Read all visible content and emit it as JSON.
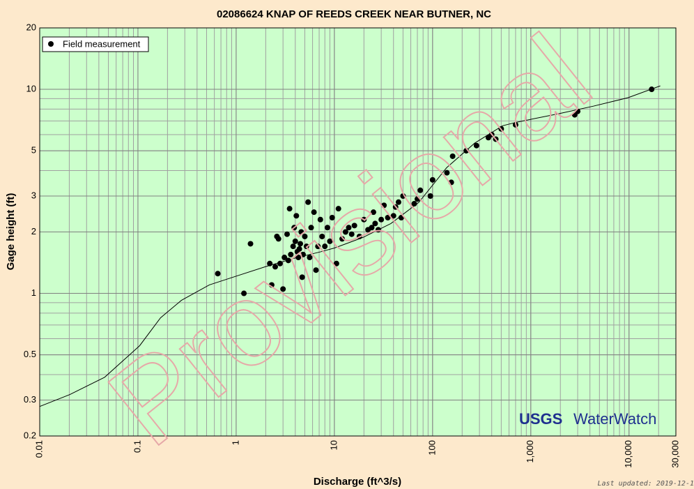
{
  "chart_data": {
    "type": "scatter",
    "title": "02086624 KNAP OF REEDS CREEK NEAR BUTNER, NC",
    "xlabel": "Discharge (ft^3/s)",
    "ylabel": "Gage height (ft)",
    "xscale": "log",
    "yscale": "log",
    "grid": true,
    "legend": "upper left",
    "xlim": [
      0.01,
      30000
    ],
    "ylim": [
      0.2,
      20
    ],
    "xticks": [
      0.01,
      0.1,
      1,
      10,
      100,
      {
        "value": 1000,
        "label": "1,000"
      },
      {
        "value": 10000,
        "label": "10,000"
      },
      {
        "value": 30000,
        "label": "30,000"
      }
    ],
    "yticks": [
      0.2,
      0.3,
      0.5,
      1,
      2,
      3,
      5,
      10,
      20
    ],
    "series": [
      {
        "name": "Field measurement",
        "color": "#000000",
        "x": [
          0.65,
          1.2,
          1.4,
          2.2,
          2.3,
          2.5,
          2.6,
          2.8,
          2.7,
          3.0,
          3.1,
          3.3,
          3.4,
          3.5,
          3.6,
          3.8,
          3.9,
          4.0,
          4.1,
          4.2,
          4.3,
          4.4,
          4.5,
          4.6,
          4.7,
          4.8,
          5.0,
          5.2,
          5.4,
          5.6,
          5.8,
          6.2,
          6.5,
          6.8,
          7.2,
          7.5,
          8.0,
          8.5,
          9.0,
          9.5,
          10.5,
          11,
          12,
          13,
          14,
          15,
          16,
          18,
          20,
          22,
          24,
          25,
          26,
          28,
          30,
          32,
          35,
          40,
          42,
          45,
          48,
          50,
          65,
          70,
          75,
          95,
          100,
          140,
          155,
          160,
          220,
          280,
          370,
          400,
          440,
          500,
          700,
          2800,
          3000,
          17000
        ],
        "values": [
          1.25,
          1.0,
          1.75,
          1.4,
          1.1,
          1.35,
          1.9,
          1.4,
          1.85,
          1.05,
          1.5,
          1.95,
          1.45,
          2.6,
          1.55,
          1.7,
          2.1,
          1.8,
          2.4,
          1.6,
          1.5,
          1.65,
          1.75,
          2.0,
          1.2,
          1.55,
          1.9,
          1.7,
          2.8,
          1.5,
          2.1,
          2.5,
          1.3,
          1.7,
          2.3,
          1.9,
          1.7,
          2.1,
          1.8,
          2.35,
          1.4,
          2.6,
          1.85,
          2.0,
          2.1,
          1.95,
          2.15,
          1.9,
          2.3,
          2.05,
          2.1,
          2.5,
          2.2,
          2.05,
          2.3,
          2.7,
          2.35,
          2.4,
          2.65,
          2.8,
          2.35,
          3.0,
          2.75,
          2.9,
          3.2,
          3.0,
          3.6,
          3.9,
          3.5,
          4.7,
          5.0,
          5.3,
          5.8,
          6.0,
          5.7,
          6.4,
          6.7,
          7.5,
          7.8,
          10.0
        ]
      }
    ],
    "curve": {
      "color": "#000000",
      "x": [
        0.01,
        0.0202,
        0.0458,
        0.104,
        0.17,
        0.277,
        0.533,
        1.03,
        1.98,
        3.8,
        7.31,
        10.1,
        19.5,
        37.6,
        72.3,
        139,
        268,
        515,
        715,
        1910,
        4330,
        9800,
        20800
      ],
      "values": [
        0.279,
        0.319,
        0.388,
        0.554,
        0.759,
        0.924,
        1.1,
        1.22,
        1.35,
        1.48,
        1.6,
        1.67,
        1.88,
        2.2,
        2.79,
        4.13,
        5.45,
        6.63,
        6.9,
        7.59,
        8.27,
        9.1,
        10.4
      ]
    },
    "watermark": "Provisional",
    "logo": {
      "agency": "USGS",
      "product": "WaterWatch"
    },
    "footer": "Last updated: 2019-12-1"
  }
}
